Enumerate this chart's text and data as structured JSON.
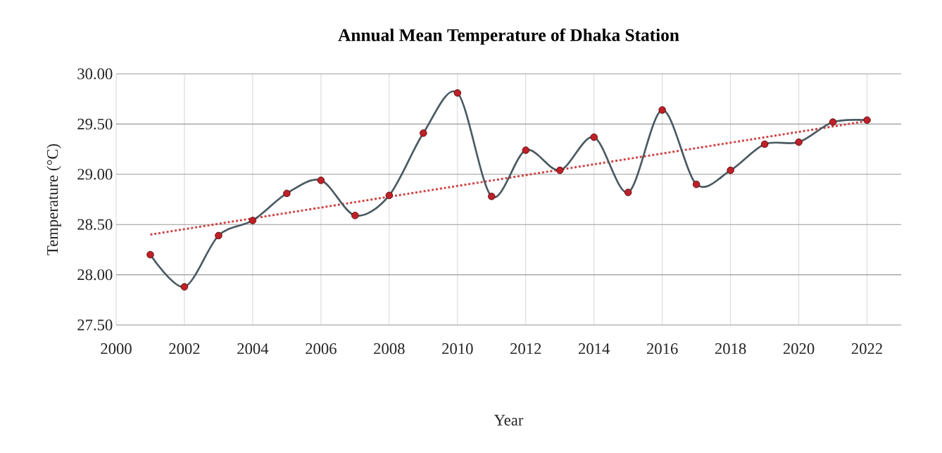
{
  "chart_data": {
    "type": "line",
    "title": "Annual Mean Temperature of Dhaka Station",
    "xlabel": "Year",
    "ylabel": "Temperature (°C)",
    "xlim": [
      2000,
      2023
    ],
    "xticks": [
      2000,
      2002,
      2004,
      2006,
      2008,
      2010,
      2012,
      2014,
      2016,
      2018,
      2020,
      2022
    ],
    "ylim": [
      27.5,
      30.0
    ],
    "yticks": [
      {
        "value": 27.5,
        "label": "27.50"
      },
      {
        "value": 28.0,
        "label": "28.00"
      },
      {
        "value": 28.5,
        "label": "28.50"
      },
      {
        "value": 29.0,
        "label": "29.00"
      },
      {
        "value": 29.5,
        "label": "29.50"
      },
      {
        "value": 30.0,
        "label": "30.00"
      }
    ],
    "grid": true,
    "series": [
      {
        "color": "#4a5a62",
        "marker": "circle",
        "line_style": "solid",
        "x": [
          2001,
          2002,
          2003,
          2004,
          2005,
          2006,
          2007,
          2008,
          2009,
          2010,
          2011,
          2012,
          2013,
          2014,
          2015,
          2016,
          2017,
          2018,
          2019,
          2020,
          2021,
          2022
        ],
        "values": [
          28.2,
          27.88,
          28.39,
          28.54,
          28.81,
          28.94,
          28.59,
          28.79,
          29.41,
          29.81,
          28.78,
          29.24,
          29.04,
          29.37,
          28.82,
          29.64,
          28.9,
          29.04,
          29.3,
          29.32,
          29.52,
          29.54
        ]
      },
      {
        "type": "line",
        "color": "#d04040",
        "marker": "none",
        "line_style": "dotted",
        "x": [
          2001,
          2022
        ],
        "values": [
          28.4,
          29.53
        ]
      }
    ]
  }
}
